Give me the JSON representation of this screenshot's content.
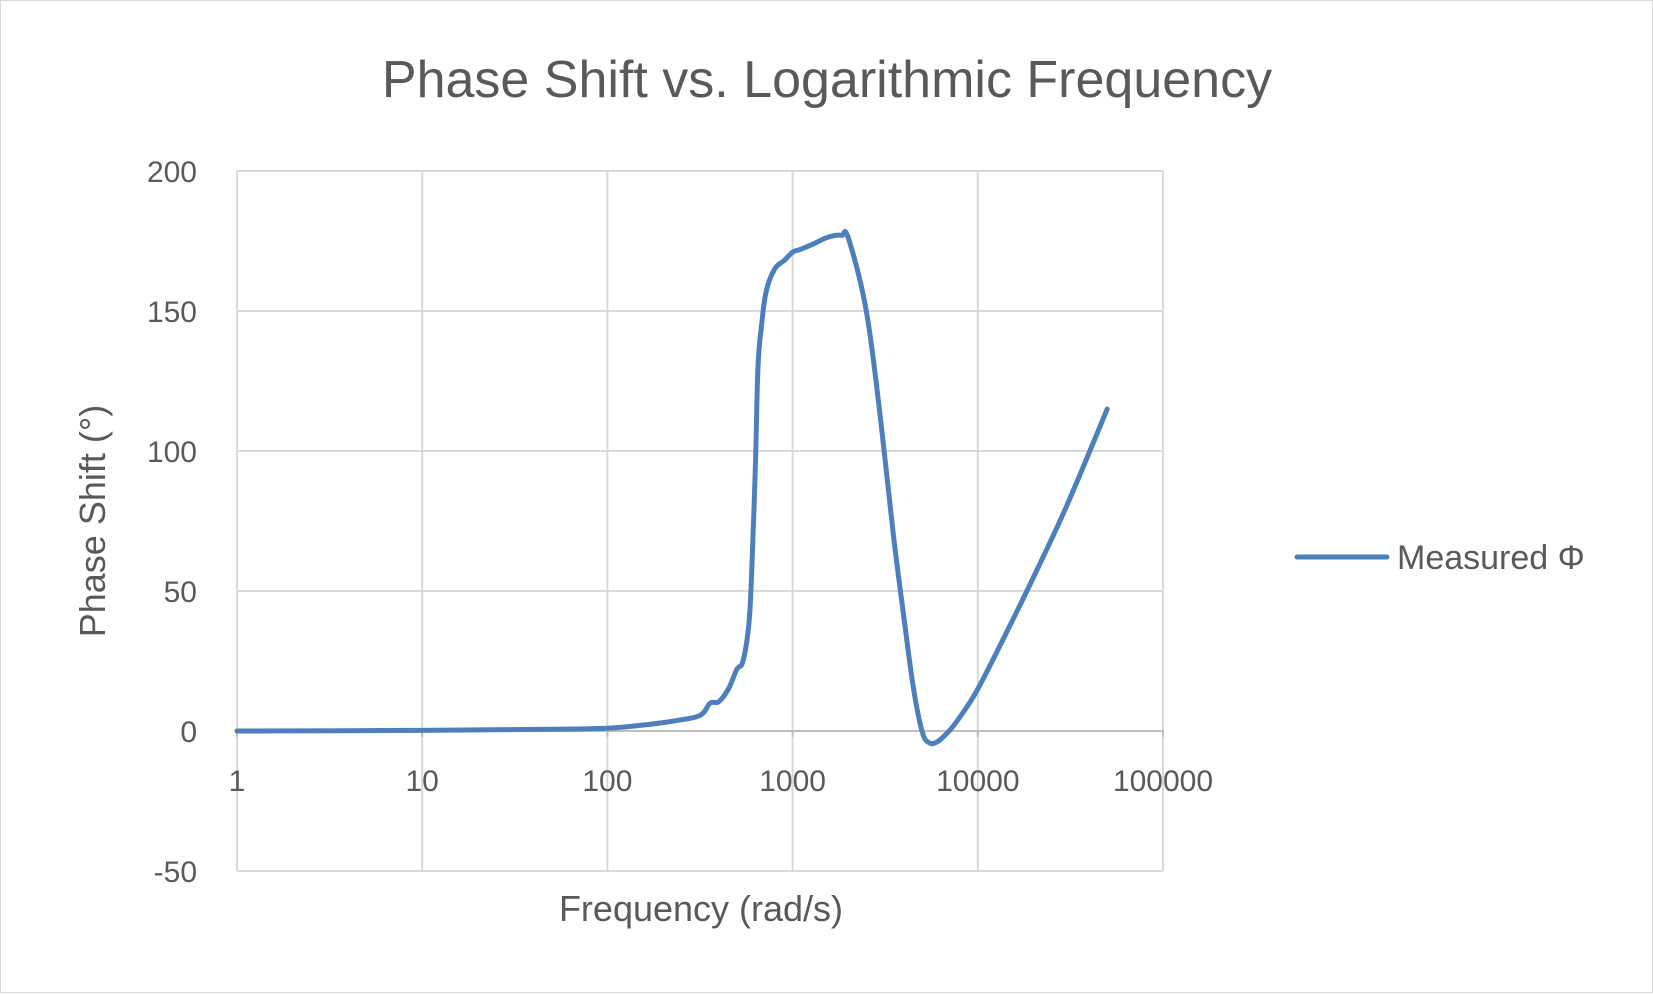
{
  "chart_data": {
    "type": "line",
    "title": "Phase Shift vs. Logarithmic Frequency",
    "xlabel": "Frequency (rad/s)",
    "ylabel": "Phase Shift (°)",
    "x_scale": "log",
    "xlim": [
      1,
      100000
    ],
    "ylim": [
      -50,
      200
    ],
    "x_ticks": [
      1,
      10,
      100,
      1000,
      10000,
      100000
    ],
    "x_tick_labels": [
      "1",
      "10",
      "100",
      "1000",
      "10000",
      "100000"
    ],
    "y_ticks": [
      -50,
      0,
      50,
      100,
      150,
      200
    ],
    "y_tick_labels": [
      "-50",
      "0",
      "50",
      "100",
      "150",
      "200"
    ],
    "grid": true,
    "legend_position": "right",
    "series": [
      {
        "name": "Measured Φ",
        "color": "#4e7fbd",
        "x": [
          1,
          10,
          50,
          100,
          150,
          200,
          250,
          300,
          330,
          360,
          400,
          450,
          500,
          540,
          580,
          600,
          630,
          650,
          680,
          720,
          800,
          900,
          1000,
          1100,
          1300,
          1500,
          1700,
          1850,
          2000,
          2500,
          3000,
          3500,
          4000,
          4500,
          5000,
          5400,
          6000,
          7000,
          8000,
          10000,
          15000,
          20000,
          30000,
          50000
        ],
        "y": [
          0,
          0.2,
          0.6,
          1,
          2,
          3,
          4,
          5,
          6.5,
          10,
          10.5,
          15,
          22,
          25,
          38,
          55,
          95,
          130,
          145,
          157,
          165,
          168,
          171,
          172,
          174,
          176,
          177,
          177,
          176,
          150,
          110,
          70,
          40,
          15,
          0,
          -4,
          -4,
          0,
          5,
          15,
          38,
          55,
          80,
          115
        ]
      }
    ]
  }
}
